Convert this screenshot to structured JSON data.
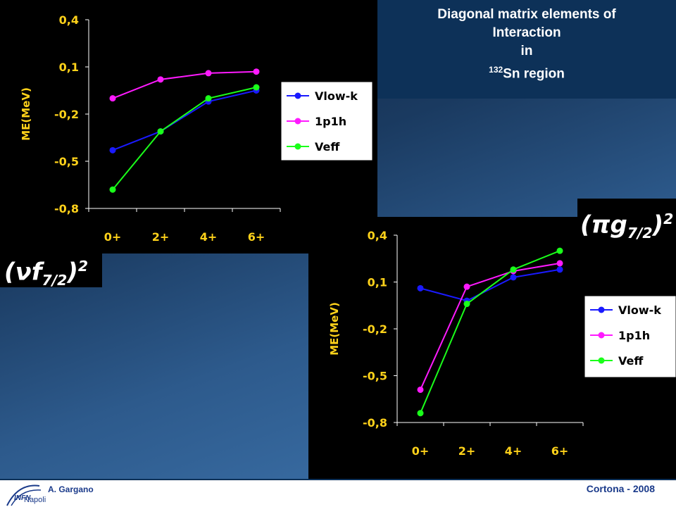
{
  "title": {
    "line1": "Diagonal matrix elements of",
    "line2": "Interaction",
    "line3": "in",
    "mass_number": "132",
    "region": "Sn region"
  },
  "labels": {
    "left_state": {
      "greek": "ν",
      "orbital": "f",
      "sub": "7/2",
      "sup": "2"
    },
    "right_state": {
      "greek": "π",
      "orbital": "g",
      "sub": "7/2",
      "sup": "2"
    }
  },
  "footer": {
    "author": "A. Gargano",
    "event": "Cortona - 2008",
    "logo_text": "INFN",
    "logo_sub": "Napoli"
  },
  "colors": {
    "vlowk": "#1a1aff",
    "p1h": "#ff1aff",
    "veff": "#1aff1a"
  },
  "chart_data": [
    {
      "type": "line",
      "ylabel": "ME(MeV)",
      "categories": [
        "0+",
        "2+",
        "4+",
        "6+"
      ],
      "ylim": [
        -0.8,
        0.4
      ],
      "yticks": [
        "0,4",
        "0,1",
        "-0,2",
        "-0,5",
        "-0,8"
      ],
      "legend_position": "right",
      "series": [
        {
          "name": "Vlow-k",
          "values": [
            -0.43,
            -0.31,
            -0.12,
            -0.05
          ]
        },
        {
          "name": "1p1h",
          "values": [
            -0.1,
            0.02,
            0.06,
            0.07
          ]
        },
        {
          "name": "Veff",
          "values": [
            -0.68,
            -0.31,
            -0.1,
            -0.03
          ]
        }
      ]
    },
    {
      "type": "line",
      "ylabel": "ME(MeV)",
      "categories": [
        "0+",
        "2+",
        "4+",
        "6+"
      ],
      "ylim": [
        -0.8,
        0.4
      ],
      "yticks": [
        "0,4",
        "0,1",
        "-0,2",
        "-0,5",
        "-0,8"
      ],
      "legend_position": "right",
      "series": [
        {
          "name": "Vlow-k",
          "values": [
            0.06,
            -0.02,
            0.13,
            0.18
          ]
        },
        {
          "name": "1p1h",
          "values": [
            -0.59,
            0.07,
            0.17,
            0.22
          ]
        },
        {
          "name": "Veff",
          "values": [
            -0.74,
            -0.04,
            0.18,
            0.3
          ]
        }
      ]
    }
  ]
}
